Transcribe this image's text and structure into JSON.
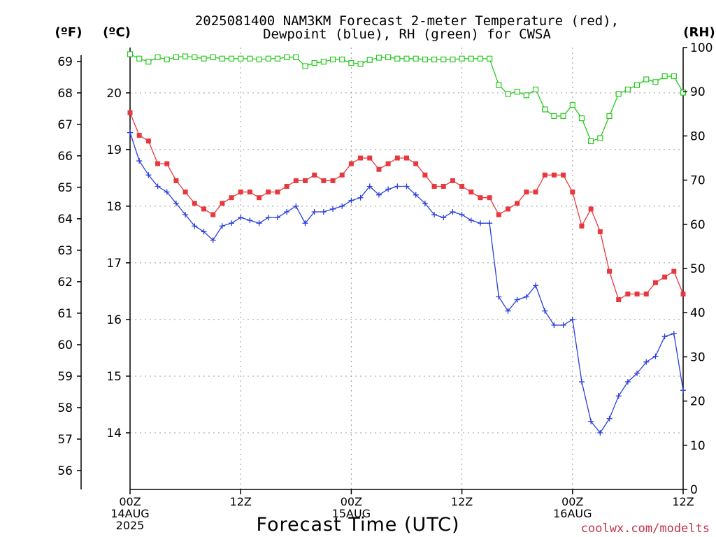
{
  "header": {
    "title_line1": "2025081400 NAM3KM Forecast 2-meter Temperature (red),",
    "title_line2": "Dewpoint (blue), RH (green) for CWSA"
  },
  "units": {
    "fahrenheit": "(ºF)",
    "celsius": "(ºC)",
    "rh": "(RH)"
  },
  "footer": {
    "xlabel": "Forecast Time (UTC)",
    "credit": "coolwx.com/modelts"
  },
  "colors": {
    "temperature": "#e8383d",
    "dewpoint": "#2a3fdb",
    "rh": "#27c91e",
    "grid": "#9b9b9b",
    "axis": "#000000",
    "credit": "#c0334b"
  },
  "chart_data": {
    "type": "line",
    "title": "2025081400 NAM3KM Forecast 2-meter Temperature (red), Dewpoint (blue), RH (green) for CWSA",
    "xlabel": "Forecast Time (UTC)",
    "x_unit": "forecast hour",
    "xlim": [
      0,
      60
    ],
    "x_ticks": [
      {
        "value": 0,
        "lines": [
          "00Z",
          "14AUG",
          "2025"
        ]
      },
      {
        "value": 12,
        "lines": [
          "12Z"
        ]
      },
      {
        "value": 24,
        "lines": [
          "00Z",
          "15AUG"
        ]
      },
      {
        "value": 36,
        "lines": [
          "12Z"
        ]
      },
      {
        "value": 48,
        "lines": [
          "00Z",
          "16AUG"
        ]
      },
      {
        "value": 60,
        "lines": [
          "12Z"
        ]
      }
    ],
    "y_celsius": {
      "label": "(ºC)",
      "range": [
        13.0,
        20.8
      ],
      "ticks": [
        14,
        15,
        16,
        17,
        18,
        19,
        20
      ]
    },
    "y_fahrenheit": {
      "label": "(ºF)",
      "range": [
        55.4,
        69.44
      ],
      "ticks": [
        56,
        57,
        58,
        59,
        60,
        61,
        62,
        63,
        64,
        65,
        66,
        67,
        68,
        69
      ]
    },
    "y_rh": {
      "label": "(RH)",
      "range": [
        0,
        100
      ],
      "ticks": [
        0,
        10,
        20,
        30,
        40,
        50,
        60,
        70,
        80,
        90,
        100
      ]
    },
    "grid": true,
    "series": [
      {
        "name": "Temperature",
        "color": "#e8383d",
        "axis": "celsius",
        "marker": "filled-square",
        "values": [
          19.65,
          19.25,
          19.15,
          18.75,
          18.75,
          18.45,
          18.25,
          18.05,
          17.95,
          17.85,
          18.05,
          18.15,
          18.25,
          18.25,
          18.15,
          18.25,
          18.25,
          18.35,
          18.45,
          18.45,
          18.55,
          18.45,
          18.45,
          18.55,
          18.75,
          18.85,
          18.85,
          18.65,
          18.75,
          18.85,
          18.85,
          18.75,
          18.55,
          18.35,
          18.35,
          18.45,
          18.35,
          18.25,
          18.15,
          18.15,
          17.85,
          17.95,
          18.05,
          18.25,
          18.25,
          18.55,
          18.55,
          18.55,
          18.25,
          17.65,
          17.95,
          17.55,
          16.85,
          16.35,
          16.45,
          16.45,
          16.45,
          16.65,
          16.75,
          16.85,
          16.45
        ]
      },
      {
        "name": "Dewpoint",
        "color": "#2a3fdb",
        "axis": "celsius",
        "marker": "plus",
        "values": [
          19.3,
          18.8,
          18.55,
          18.35,
          18.25,
          18.05,
          17.85,
          17.65,
          17.55,
          17.4,
          17.65,
          17.7,
          17.8,
          17.75,
          17.7,
          17.8,
          17.8,
          17.9,
          18.0,
          17.7,
          17.9,
          17.9,
          17.95,
          18.0,
          18.1,
          18.15,
          18.35,
          18.2,
          18.3,
          18.35,
          18.35,
          18.2,
          18.05,
          17.85,
          17.8,
          17.9,
          17.85,
          17.75,
          17.7,
          17.7,
          16.4,
          16.15,
          16.35,
          16.4,
          16.6,
          16.15,
          15.9,
          15.9,
          16.0,
          14.9,
          14.2,
          14.0,
          14.25,
          14.65,
          14.9,
          15.05,
          15.25,
          15.35,
          15.7,
          15.75,
          14.75
        ]
      },
      {
        "name": "RH",
        "color": "#27c91e",
        "axis": "rh",
        "marker": "open-square",
        "values": [
          98.5,
          97.5,
          96.8,
          97.8,
          97.3,
          97.8,
          98.0,
          97.8,
          97.5,
          97.8,
          97.5,
          97.5,
          97.5,
          97.5,
          97.3,
          97.5,
          97.5,
          97.8,
          97.8,
          95.8,
          96.5,
          96.8,
          97.3,
          97.3,
          96.5,
          96.3,
          97.2,
          97.7,
          97.8,
          97.5,
          97.5,
          97.5,
          97.3,
          97.3,
          97.3,
          97.3,
          97.5,
          97.5,
          97.5,
          97.5,
          91.5,
          89.5,
          90.0,
          89.2,
          90.5,
          86.0,
          84.5,
          84.5,
          87.0,
          84.0,
          78.8,
          79.5,
          84.5,
          89.5,
          90.5,
          91.5,
          92.8,
          92.2,
          93.5,
          93.5,
          89.8
        ]
      }
    ]
  }
}
